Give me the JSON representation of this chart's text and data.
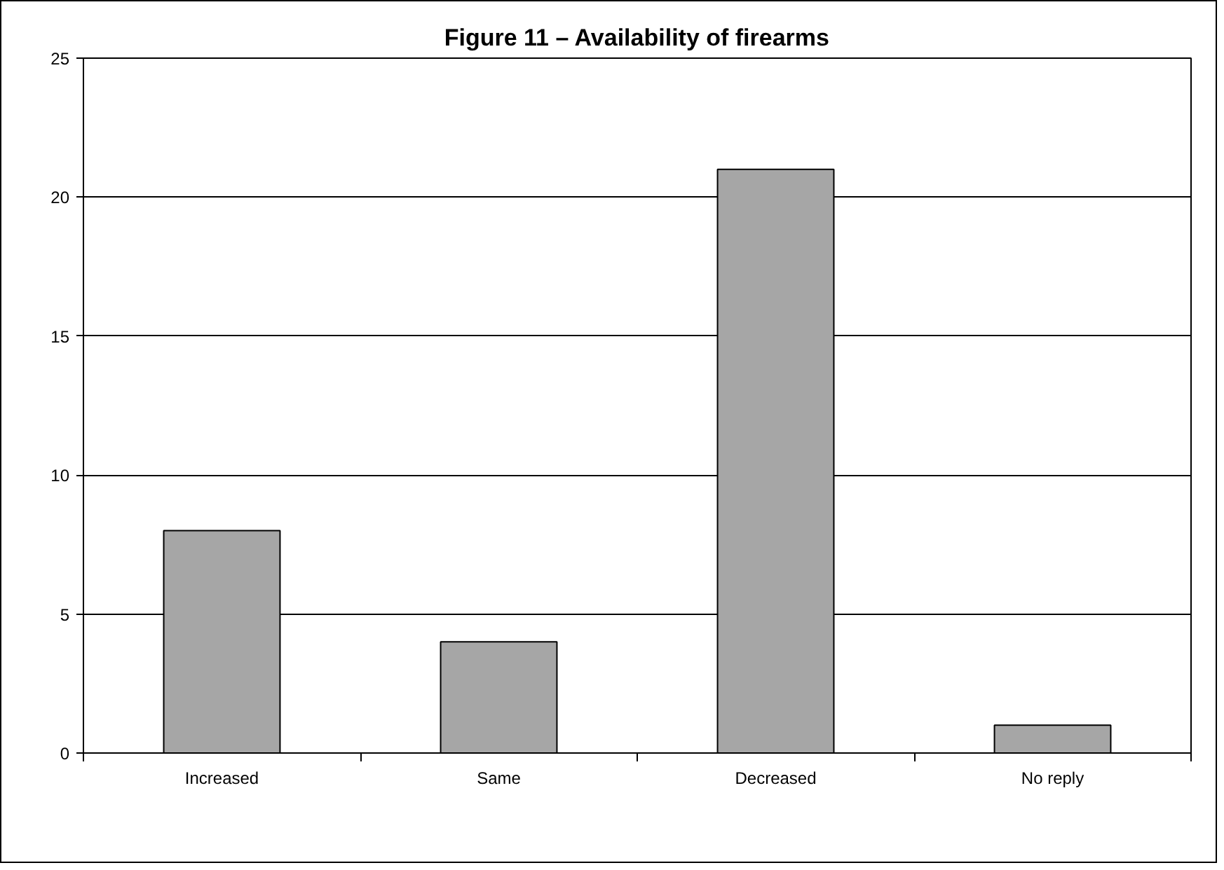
{
  "chart_data": {
    "type": "bar",
    "title": "Figure 11 – Availability of firearms",
    "categories": [
      "Increased",
      "Same",
      "Decreased",
      "No reply"
    ],
    "values": [
      8,
      4,
      21,
      1
    ],
    "color": "#a6a6a6",
    "ylim": [
      0,
      25
    ],
    "yticks": [
      0,
      5,
      10,
      15,
      20,
      25
    ],
    "grid": "y"
  }
}
